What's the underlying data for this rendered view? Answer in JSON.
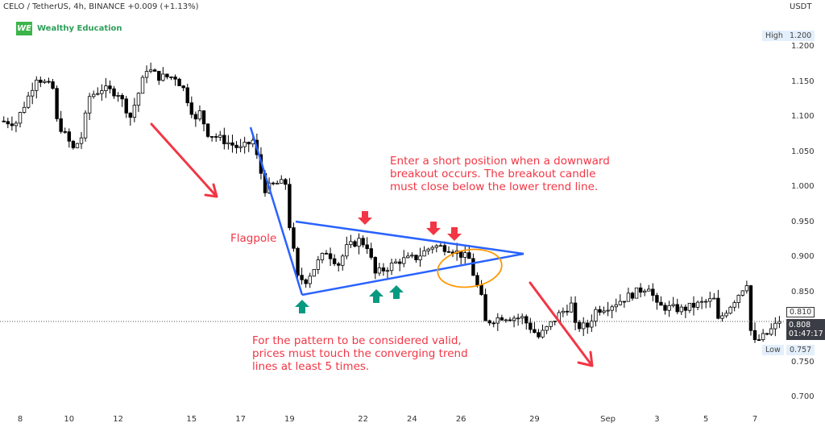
{
  "header": {
    "symbol_line": "CELO / TetherUS, 4h, BINANCE  +0.009 (+1.13%)",
    "logo_mark": "WE",
    "logo_text": "Wealthy Education"
  },
  "price_axis": {
    "unit": "USDT",
    "ticks": [
      "1.200",
      "1.150",
      "1.100",
      "1.050",
      "1.000",
      "0.950",
      "0.900",
      "0.850",
      "0.750",
      "0.700"
    ],
    "high_label": "High",
    "high_value": "1.200",
    "low_label": "Low",
    "low_value": "0.757",
    "prev_value": "0.810",
    "last_price": "0.808",
    "countdown": "01:47:17"
  },
  "time_axis": {
    "ticks": [
      {
        "label": "8",
        "date": "08-08 00"
      },
      {
        "label": "10",
        "date": "08-10 00"
      },
      {
        "label": "12",
        "date": "08-12 00"
      },
      {
        "label": "15",
        "date": "08-15 00"
      },
      {
        "label": "17",
        "date": "08-17 00"
      },
      {
        "label": "19",
        "date": "08-19 00"
      },
      {
        "label": "22",
        "date": "08-22 00"
      },
      {
        "label": "24",
        "date": "08-24 00"
      },
      {
        "label": "26",
        "date": "08-26 00"
      },
      {
        "label": "29",
        "date": "08-29 00"
      },
      {
        "label": "Sep",
        "date": "09-01 00"
      },
      {
        "label": "3",
        "date": "09-03 00"
      },
      {
        "label": "5",
        "date": "09-05 00"
      },
      {
        "label": "7",
        "date": "09-07 00"
      }
    ]
  },
  "annotations": {
    "flagpole": "Flagpole",
    "entry_note": "Enter a short position when a downward\nbreakout occurs. The breakout candle\nmust close below the lower trend line.",
    "validity_note": "For the pattern to be considered valid,\nprices must touch the converging trend\nlines at least 5 times."
  },
  "colors": {
    "trendline": "#2962ff",
    "arrow_down": "#f23645",
    "arrow_up": "#089981",
    "ellipse": "#ff9800",
    "text": "#f23645",
    "candle_up": "#ffffff",
    "candle_down": "#000000"
  },
  "chart_data": {
    "type": "candlestick",
    "title": "CELO / TetherUS, 4h, BINANCE",
    "ylim": [
      0.68,
      1.26
    ],
    "grid": false,
    "close_path": [
      [
        "08-07 04",
        1.094
      ],
      [
        "08-07 20",
        1.092
      ],
      [
        "08-08 08",
        1.129
      ],
      [
        "08-08 16",
        1.157
      ],
      [
        "08-09 08",
        1.14
      ],
      [
        "08-09 12",
        1.094
      ],
      [
        "08-10 04",
        1.054
      ],
      [
        "08-10 12",
        1.071
      ],
      [
        "08-10 20",
        1.129
      ],
      [
        "08-11 08",
        1.14
      ],
      [
        "08-12 00",
        1.134
      ],
      [
        "08-12 12",
        1.1
      ],
      [
        "08-12 20",
        1.134
      ],
      [
        "08-13 04",
        1.169
      ],
      [
        "08-13 16",
        1.157
      ],
      [
        "08-14 08",
        1.157
      ],
      [
        "08-14 16",
        1.14
      ],
      [
        "08-15 04",
        1.094
      ],
      [
        "08-15 08",
        1.106
      ],
      [
        "08-15 16",
        1.077
      ],
      [
        "08-16 08",
        1.066
      ],
      [
        "08-17 00",
        1.054
      ],
      [
        "08-17 12",
        1.066
      ],
      [
        "08-17 20",
        1.02
      ],
      [
        "08-18 00",
        0.997
      ],
      [
        "08-18 12",
        1.005
      ],
      [
        "08-18 20",
        1.005
      ],
      [
        "08-19 00",
        0.945
      ],
      [
        "08-19 08",
        0.87
      ],
      [
        "08-19 16",
        0.867
      ],
      [
        "08-20 04",
        0.893
      ],
      [
        "08-20 12",
        0.908
      ],
      [
        "08-21 00",
        0.89
      ],
      [
        "08-21 08",
        0.913
      ],
      [
        "08-21 20",
        0.924
      ],
      [
        "08-22 04",
        0.916
      ],
      [
        "08-22 12",
        0.876
      ],
      [
        "08-22 20",
        0.882
      ],
      [
        "08-23 12",
        0.895
      ],
      [
        "08-24 04",
        0.899
      ],
      [
        "08-24 20",
        0.916
      ],
      [
        "08-25 12",
        0.913
      ],
      [
        "08-25 16",
        0.91
      ],
      [
        "08-26 08",
        0.897
      ],
      [
        "08-26 12",
        0.876
      ],
      [
        "08-26 20",
        0.841
      ],
      [
        "08-27 00",
        0.807
      ],
      [
        "08-27 16",
        0.815
      ],
      [
        "08-28 12",
        0.813
      ],
      [
        "08-29 04",
        0.786
      ],
      [
        "08-29 12",
        0.798
      ],
      [
        "08-30 00",
        0.818
      ],
      [
        "08-30 12",
        0.832
      ],
      [
        "08-30 16",
        0.801
      ],
      [
        "08-31 04",
        0.801
      ],
      [
        "08-31 12",
        0.824
      ],
      [
        "09-01 04",
        0.832
      ],
      [
        "09-01 20",
        0.844
      ],
      [
        "09-02 16",
        0.859
      ],
      [
        "09-03 00",
        0.83
      ],
      [
        "09-04 00",
        0.825
      ],
      [
        "09-05 00",
        0.836
      ],
      [
        "09-05 08",
        0.839
      ],
      [
        "09-05 12",
        0.809
      ],
      [
        "09-06 04",
        0.839
      ],
      [
        "09-06 16",
        0.864
      ],
      [
        "09-06 20",
        0.795
      ],
      [
        "09-07 00",
        0.778
      ],
      [
        "09-07 12",
        0.79
      ],
      [
        "09-08 00",
        0.808
      ]
    ],
    "high": 1.2,
    "low": 0.757,
    "last": 0.808
  }
}
